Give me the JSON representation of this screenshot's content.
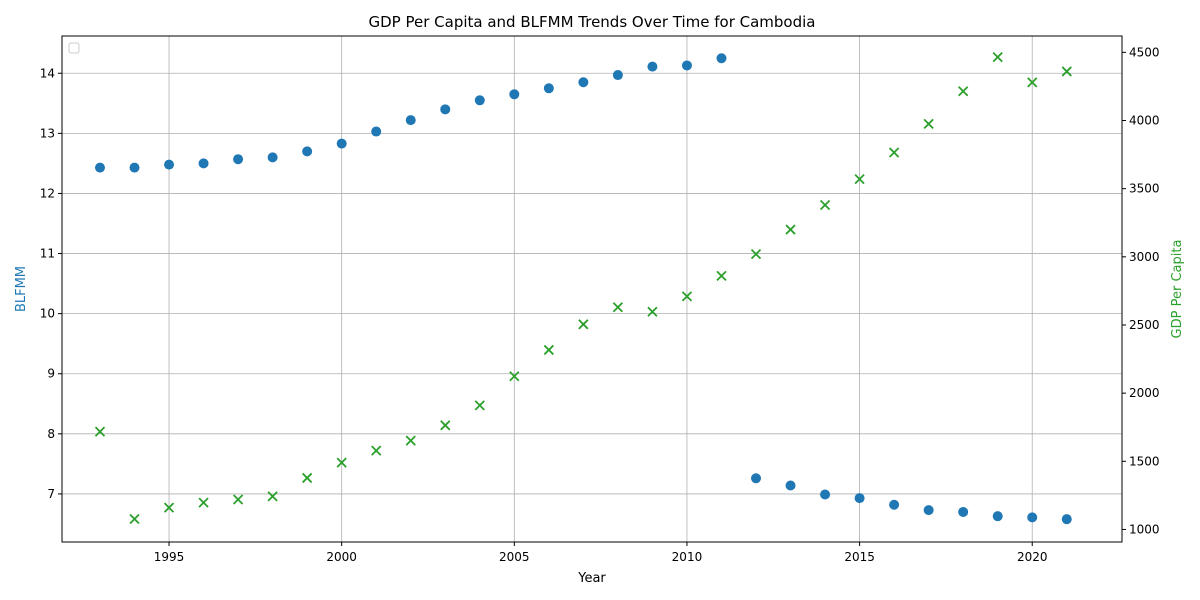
{
  "chart_data": {
    "type": "scatter",
    "title": "GDP Per Capita and BLFMM Trends Over Time for Cambodia",
    "xlabel": "Year",
    "ylabel_left": "BLFMM",
    "ylabel_right": "GDP Per Capita",
    "xlim": [
      1991.9,
      2022.6
    ],
    "ylim_left": [
      6.2,
      14.62
    ],
    "ylim_right": [
      908,
      4620
    ],
    "x_ticks": [
      1995,
      2000,
      2005,
      2010,
      2015,
      2020
    ],
    "y_left_ticks": [
      7,
      8,
      9,
      10,
      11,
      12,
      13,
      14
    ],
    "y_right_ticks": [
      1000,
      1500,
      2000,
      2500,
      3000,
      3500,
      4000,
      4500
    ],
    "grid": true,
    "legend_placement": "top-left",
    "series": [
      {
        "axis": "left",
        "marker": "circle",
        "color": "#1f77b4",
        "points": [
          [
            1993,
            12.43
          ],
          [
            1994,
            12.43
          ],
          [
            1995,
            12.48
          ],
          [
            1996,
            12.5
          ],
          [
            1997,
            12.57
          ],
          [
            1998,
            12.6
          ],
          [
            1999,
            12.7
          ],
          [
            2000,
            12.83
          ],
          [
            2001,
            13.03
          ],
          [
            2002,
            13.22
          ],
          [
            2003,
            13.4
          ],
          [
            2004,
            13.55
          ],
          [
            2005,
            13.65
          ],
          [
            2006,
            13.75
          ],
          [
            2007,
            13.85
          ],
          [
            2008,
            13.97
          ],
          [
            2009,
            14.11
          ],
          [
            2010,
            14.13
          ],
          [
            2011,
            14.25
          ],
          [
            2012,
            7.26
          ],
          [
            2013,
            7.14
          ],
          [
            2014,
            6.99
          ],
          [
            2015,
            6.93
          ],
          [
            2016,
            6.82
          ],
          [
            2017,
            6.73
          ],
          [
            2018,
            6.7
          ],
          [
            2019,
            6.63
          ],
          [
            2020,
            6.61
          ],
          [
            2021,
            6.58
          ]
        ]
      },
      {
        "axis": "right",
        "marker": "x",
        "color": "#2ca02c",
        "points": [
          [
            1993,
            1718
          ],
          [
            1994,
            1077
          ],
          [
            1995,
            1160
          ],
          [
            1996,
            1197
          ],
          [
            1997,
            1220
          ],
          [
            1998,
            1243
          ],
          [
            1999,
            1378
          ],
          [
            2000,
            1490
          ],
          [
            2001,
            1578
          ],
          [
            2002,
            1652
          ],
          [
            2003,
            1764
          ],
          [
            2004,
            1910
          ],
          [
            2005,
            2124
          ],
          [
            2006,
            2317
          ],
          [
            2007,
            2505
          ],
          [
            2008,
            2630
          ],
          [
            2009,
            2597
          ],
          [
            2010,
            2710
          ],
          [
            2011,
            2860
          ],
          [
            2012,
            3020
          ],
          [
            2013,
            3200
          ],
          [
            2014,
            3380
          ],
          [
            2015,
            3570
          ],
          [
            2016,
            3765
          ],
          [
            2017,
            3975
          ],
          [
            2018,
            4215
          ],
          [
            2019,
            4465
          ],
          [
            2020,
            4280
          ],
          [
            2021,
            4360
          ]
        ]
      }
    ]
  }
}
